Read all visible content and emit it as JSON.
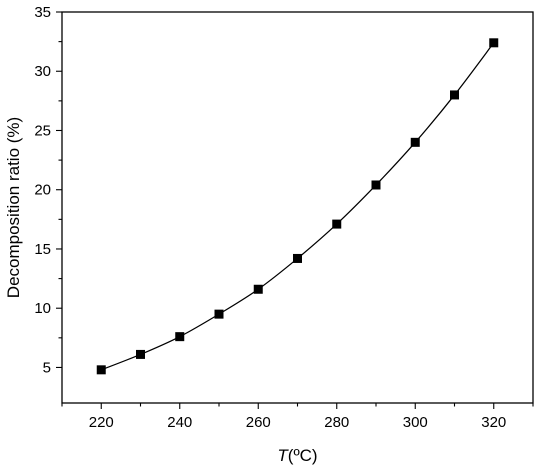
{
  "chart_data": {
    "type": "line",
    "xlabel_italic": "T",
    "xlabel_rest": "(ºC)",
    "ylabel": "Decomposition ratio (%)",
    "xlim": [
      210,
      330
    ],
    "ylim": [
      2,
      35
    ],
    "x_ticks": [
      220,
      240,
      260,
      280,
      300,
      320
    ],
    "x_minor_ticks": [
      210,
      230,
      250,
      270,
      290,
      310,
      330
    ],
    "y_ticks": [
      5,
      10,
      15,
      20,
      25,
      30,
      35
    ],
    "y_minor_ticks": [
      7.5,
      12.5,
      17.5,
      22.5,
      27.5,
      32.5
    ],
    "grid": false,
    "marker": "square",
    "series": [
      {
        "x": [
          220,
          230,
          240,
          250,
          260,
          270,
          280,
          290,
          300,
          310,
          320
        ],
        "y": [
          4.8,
          6.1,
          7.6,
          9.5,
          11.6,
          14.2,
          17.1,
          20.4,
          24.0,
          28.0,
          32.4
        ]
      }
    ]
  }
}
